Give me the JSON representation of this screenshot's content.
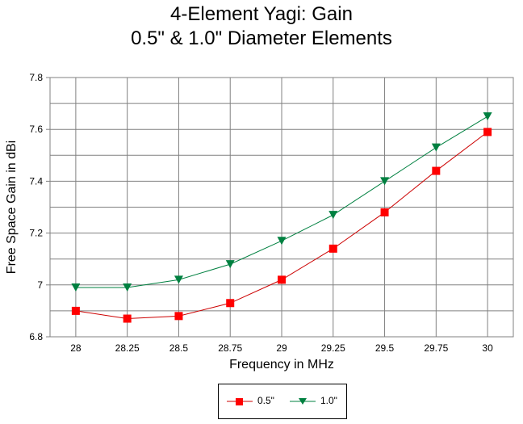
{
  "chart_data": {
    "type": "line",
    "title": "4-Element Yagi:  Gain",
    "subtitle": "0.5\" & 1.0\" Diameter Elements",
    "xlabel": "Frequency in MHz",
    "ylabel": "Free Space Gain in dBi",
    "x": [
      28,
      28.25,
      28.5,
      28.75,
      29,
      29.25,
      29.5,
      29.75,
      30
    ],
    "x_tick_labels": [
      "28",
      "28.25",
      "28.5",
      "28.75",
      "29",
      "29.25",
      "29.5",
      "29.75",
      "30"
    ],
    "ylim": [
      6.8,
      7.8
    ],
    "y_ticks": [
      6.8,
      7,
      7.2,
      7.4,
      7.6,
      7.8
    ],
    "y_tick_labels": [
      "6.8",
      "7",
      "7.2",
      "7.4",
      "7.6",
      "7.8"
    ],
    "grid": true,
    "legend_position": "bottom",
    "series": [
      {
        "name": "0.5\"",
        "color": "#ff0000",
        "line_color": "#cc0000",
        "marker": "square",
        "values": [
          6.9,
          6.87,
          6.88,
          6.93,
          7.02,
          7.14,
          7.28,
          7.44,
          7.59
        ]
      },
      {
        "name": "1.0\"",
        "color": "#008040",
        "line_color": "#008040",
        "marker": "triangle-down",
        "values": [
          6.99,
          6.99,
          7.02,
          7.08,
          7.17,
          7.27,
          7.4,
          7.53,
          7.65
        ]
      }
    ]
  }
}
